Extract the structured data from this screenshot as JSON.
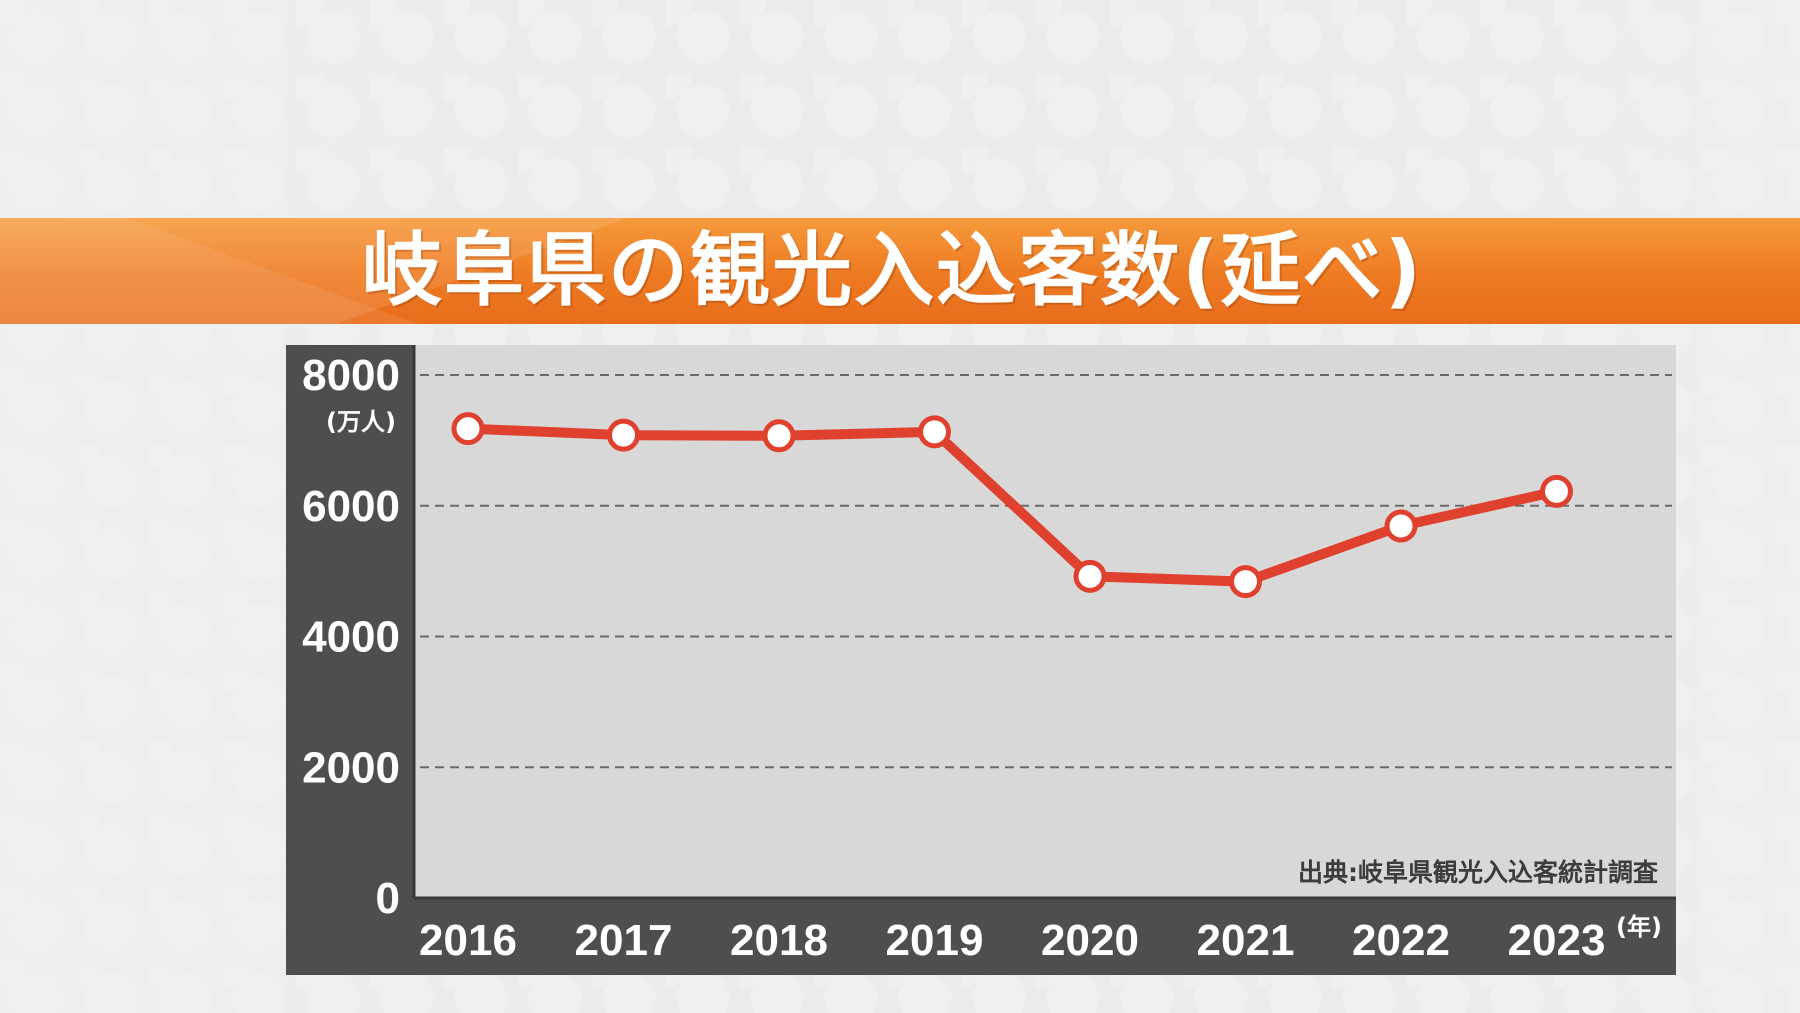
{
  "title": "岐阜県の観光入込客数(延べ)",
  "chart_data": {
    "type": "line",
    "categories": [
      "2016",
      "2017",
      "2018",
      "2019",
      "2020",
      "2021",
      "2022",
      "2023"
    ],
    "values": [
      7180,
      7080,
      7070,
      7130,
      4920,
      4840,
      5690,
      6220
    ],
    "ylim": [
      0,
      8000
    ],
    "yticks": [
      "0",
      "2000",
      "4000",
      "6000",
      "8000"
    ],
    "yunit": "(万人)",
    "xunit": "(年)",
    "grid": true,
    "source": "出典:岐阜県観光入込客統計調査",
    "colors": {
      "line": "#e0402e",
      "marker_fill": "#ffffff",
      "plot_bg": "#d8d8d8",
      "frame": "#4e4e4e",
      "grid": "#6a6a6a"
    }
  }
}
